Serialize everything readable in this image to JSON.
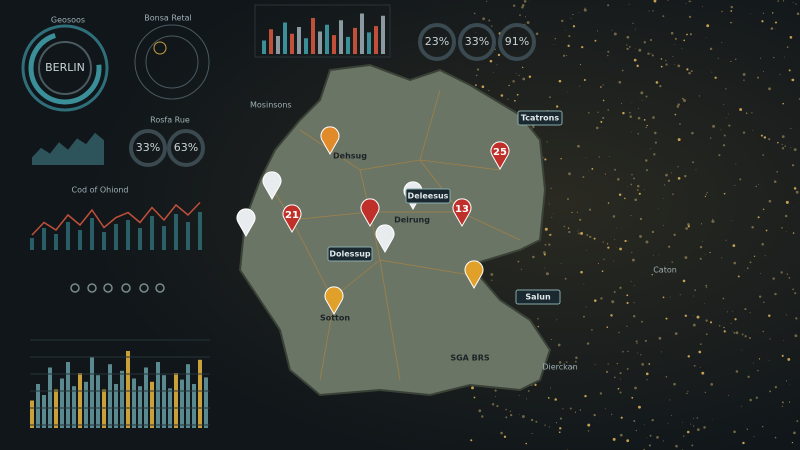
{
  "widgets": {
    "ring_title": "Geosoos",
    "ring_label": "BERLIN",
    "radial_title": "Bonsa Retal",
    "gauges_top": [
      "23%",
      "33%",
      "91%"
    ],
    "side_label": "Mosinsons",
    "gauges_mid_title": "Rosfa Rue",
    "gauges_mid": [
      "33%",
      "63%"
    ],
    "line_title": "Cod of Ohiond",
    "bar_top": {
      "values": [
        30,
        55,
        40,
        70,
        45,
        60,
        35,
        80,
        50,
        65,
        42,
        75,
        38,
        58,
        90,
        48,
        62,
        85
      ]
    },
    "area_small": {
      "values": [
        20,
        45,
        30,
        60,
        40,
        70,
        55,
        85,
        65
      ]
    },
    "line_chart": {
      "values": [
        30,
        55,
        40,
        70,
        50,
        80,
        45,
        65,
        75,
        55,
        85,
        60,
        90,
        70,
        95
      ]
    },
    "histogram": {
      "values": [
        25,
        40,
        30,
        55,
        35,
        45,
        60,
        38,
        50,
        42,
        65,
        48,
        35,
        58,
        40,
        52,
        70,
        45,
        38,
        55,
        42,
        60,
        48,
        36,
        50,
        44,
        58,
        40,
        62,
        46
      ]
    }
  },
  "map": {
    "markers": [
      {
        "label": "25"
      },
      {
        "label": "21"
      },
      {
        "label": "13"
      }
    ],
    "labels": [
      "Dehsug",
      "Deirung",
      "Dolessup",
      "Deleesus",
      "Tcatrons",
      "Salun",
      "Dierckan",
      "Sotton",
      "SGA BRS",
      "Caton"
    ]
  }
}
